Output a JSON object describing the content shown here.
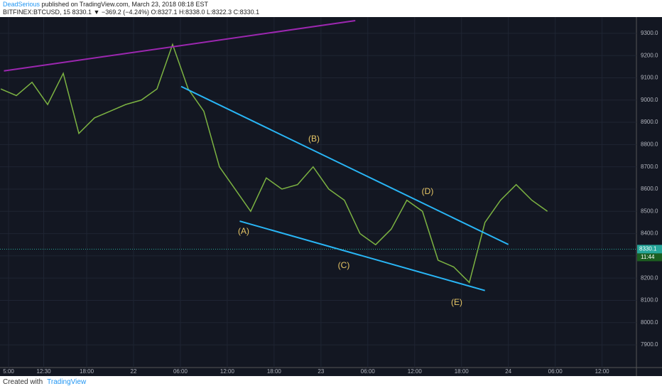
{
  "header": {
    "author": "DeadSerious",
    "published": "published on TradingView.com, March 23, 2018 08:18 EST",
    "symbol": "BITFINEX:BTCUSD, 15  8330.1 ▼ −369.2 (−4.24%) O:8327.1 H:8338.0 L:8322.3 C:8330.1"
  },
  "chart_data": {
    "type": "line",
    "x": [
      7,
      9,
      11,
      13,
      15,
      17,
      19,
      21,
      23,
      25,
      27,
      29,
      31,
      33,
      35,
      37,
      39,
      41,
      43,
      45,
      47,
      49,
      51,
      53,
      55,
      57,
      59,
      61,
      63,
      65,
      67,
      69,
      71,
      73,
      75,
      77
    ],
    "series": [
      {
        "color": "#7cb342",
        "values": [
          9050,
          9020,
          9080,
          8980,
          9120,
          8850,
          8920,
          8950,
          8980,
          9000,
          9050,
          9250,
          9050,
          8950,
          8700,
          8600,
          8500,
          8650,
          8600,
          8620,
          8700,
          8600,
          8550,
          8400,
          8350,
          8420,
          8550,
          8500,
          8280,
          8250,
          8180,
          8450,
          8550,
          8620,
          8550,
          8500
        ]
      }
    ],
    "trendlines": [
      {
        "color": "#9c27b0",
        "x": [
          7.4,
          52.4
        ],
        "y": [
          9131,
          9357
        ]
      },
      {
        "color": "#29b6f6",
        "x": [
          30.1,
          72
        ],
        "y": [
          9061,
          8351
        ]
      },
      {
        "color": "#29b6f6",
        "x": [
          37.6,
          69
        ],
        "y": [
          8456,
          8144
        ]
      }
    ],
    "annotations": [
      "(A)",
      "(B)",
      "(C)",
      "(D)",
      "(E)"
    ],
    "last_price": 8330.1,
    "countdown": "11:44",
    "xlim": [
      6.9,
      88.4
    ],
    "xticks": [
      {
        "value": 8,
        "label": "5:00"
      },
      {
        "value": 12.5,
        "label": "12:30"
      },
      {
        "value": 18,
        "label": "18:00"
      },
      {
        "value": 24,
        "label": "22"
      },
      {
        "value": 30,
        "label": "06:00"
      },
      {
        "value": 36,
        "label": "12:00"
      },
      {
        "value": 42,
        "label": "18:00"
      },
      {
        "value": 48,
        "label": "23"
      },
      {
        "value": 54,
        "label": "06:00"
      },
      {
        "value": 60,
        "label": "12:00"
      },
      {
        "value": 66,
        "label": "18:00"
      },
      {
        "value": 72,
        "label": "24"
      },
      {
        "value": 78,
        "label": "06:00"
      },
      {
        "value": 84,
        "label": "12:00"
      }
    ],
    "ylim": [
      7798,
      9373
    ],
    "yticks": [
      {
        "value": 7900,
        "label": "7900.0"
      },
      {
        "value": 8000,
        "label": "8000.0"
      },
      {
        "value": 8100,
        "label": "8100.0"
      },
      {
        "value": 8200,
        "label": "8200.0"
      },
      {
        "value": 8300,
        "label": "8300.0"
      },
      {
        "value": 8400,
        "label": "8400.0"
      },
      {
        "value": 8500,
        "label": "8500.0"
      },
      {
        "value": 8600,
        "label": "8600.0"
      },
      {
        "value": 8700,
        "label": "8700.0"
      },
      {
        "value": 8800,
        "label": "8800.0"
      },
      {
        "value": 8900,
        "label": "8900.0"
      },
      {
        "value": 9000,
        "label": "9000.0"
      },
      {
        "value": 9100,
        "label": "9100.0"
      },
      {
        "value": 9200,
        "label": "9200.0"
      },
      {
        "value": 9300,
        "label": "9300.0"
      }
    ],
    "grid": true
  },
  "footer": {
    "created": "Created with",
    "brand": "TradingView"
  }
}
